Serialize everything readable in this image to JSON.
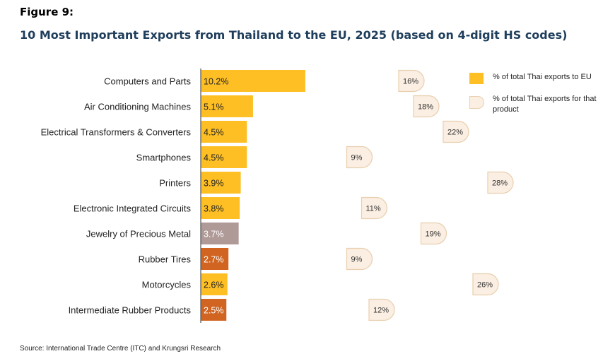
{
  "figure_label": "Figure 9:",
  "title": "10 Most Important Exports from Thailand to the EU, 2025 (based on 4-digit HS codes)",
  "source": "Source: International Trade Centre (ITC) and Krungsri Research",
  "legend": {
    "share_label": "% of total Thai exports to EU",
    "product_label": "% of total Thai exports for that product"
  },
  "colors": {
    "gold": "#fdbf24",
    "mauve": "#b09a98",
    "rust": "#d06420",
    "tag_fill": "#fbeee2",
    "tag_stroke": "#e8cfae",
    "title": "#1f3e5c"
  },
  "chart_data": {
    "type": "bar",
    "orientation": "horizontal",
    "categories": [
      "Computers and Parts",
      "Air Conditioning Machines",
      "Electrical Transformers & Converters",
      "Smartphones",
      "Printers",
      "Electronic Integrated Circuits",
      "Jewelry of Precious Metal",
      "Rubber Tires",
      "Motorcycles",
      "Intermediate Rubber Products"
    ],
    "series": [
      {
        "name": "% of total Thai exports to EU",
        "values": [
          10.2,
          5.1,
          4.5,
          4.5,
          3.9,
          3.8,
          3.7,
          2.7,
          2.6,
          2.5
        ],
        "labels": [
          "10.2%",
          "5.1%",
          "4.5%",
          "4.5%",
          "3.9%",
          "3.8%",
          "3.7%",
          "2.7%",
          "2.6%",
          "2.5%"
        ],
        "colors": [
          "#fdbf24",
          "#fdbf24",
          "#fdbf24",
          "#fdbf24",
          "#fdbf24",
          "#fdbf24",
          "#b09a98",
          "#d06420",
          "#fdbf24",
          "#d06420"
        ]
      },
      {
        "name": "% of total Thai exports for that product",
        "values": [
          16,
          18,
          22,
          9,
          28,
          11,
          19,
          9,
          26,
          12
        ],
        "labels": [
          "16%",
          "18%",
          "22%",
          "9%",
          "28%",
          "11%",
          "19%",
          "9%",
          "26%",
          "12%"
        ]
      }
    ],
    "grid": false,
    "legend_position": "top-right"
  }
}
